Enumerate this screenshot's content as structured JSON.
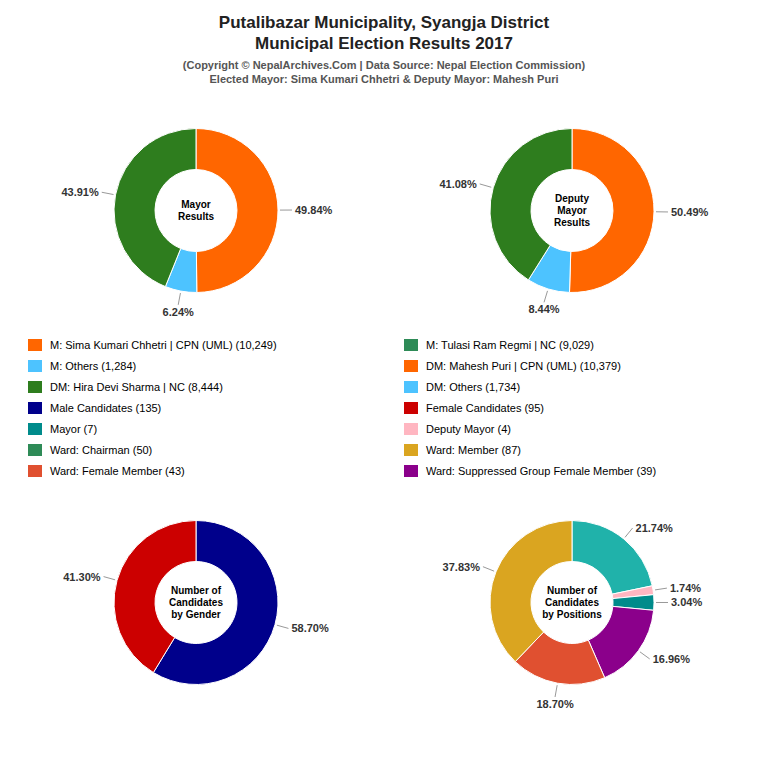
{
  "title": "Putalibazar Municipality, Syangja District\nMunicipal Election Results 2017",
  "subtitle": "(Copyright © NepalArchives.Com | Data Source: Nepal Election Commission)\nElected Mayor: Sima Kumari Chhetri & Deputy Mayor: Mahesh Puri",
  "legend_entries": [
    {
      "name": "M: Sima Kumari Chhetri | CPN (UML) (10,249)",
      "color": "#FF6600"
    },
    {
      "name": "M: Others (1,284)",
      "color": "#4DC3FF"
    },
    {
      "name": "DM: Hira Devi Sharma | NC (8,444)",
      "color": "#2E7D1E"
    },
    {
      "name": "Male Candidates (135)",
      "color": "#00008B"
    },
    {
      "name": "Mayor (7)",
      "color": "#008B8B"
    },
    {
      "name": "Ward: Chairman (50)",
      "color": "#2E8B57"
    },
    {
      "name": "Ward: Female Member (43)",
      "color": "#E05030"
    },
    {
      "name": "M: Tulasi Ram Regmi | NC (9,029)",
      "color": "#2E8B57"
    },
    {
      "name": "DM: Mahesh Puri | CPN (UML) (10,379)",
      "color": "#FF6600"
    },
    {
      "name": "DM: Others (1,734)",
      "color": "#4DC3FF"
    },
    {
      "name": "Female Candidates (95)",
      "color": "#CC0000"
    },
    {
      "name": "Deputy Mayor (4)",
      "color": "#FFB6C1"
    },
    {
      "name": "Ward: Member (87)",
      "color": "#DAA520"
    },
    {
      "name": "Ward: Suppressed Group Female Member (39)",
      "color": "#8B008B"
    }
  ],
  "chart_data": [
    {
      "type": "pie",
      "title": "Mayor\nResults",
      "values": [
        49.84,
        6.24,
        43.91
      ],
      "value_labels": [
        "49.84%",
        "6.24%",
        "43.91%"
      ],
      "colors": [
        "#FF6600",
        "#4DC3FF",
        "#2E7D1E"
      ],
      "data_labels": true
    },
    {
      "type": "pie",
      "title": "Deputy\nMayor\nResults",
      "values": [
        50.49,
        8.44,
        41.08
      ],
      "value_labels": [
        "50.49%",
        "8.44%",
        "41.08%"
      ],
      "colors": [
        "#FF6600",
        "#4DC3FF",
        "#2E7D1E"
      ],
      "data_labels": true
    },
    {
      "type": "pie",
      "title": "Number of\nCandidates\nby Gender",
      "values": [
        58.7,
        41.3
      ],
      "value_labels": [
        "58.70%",
        "41.30%"
      ],
      "colors": [
        "#00008B",
        "#CC0000"
      ],
      "data_labels": true
    },
    {
      "type": "pie",
      "title": "Number of\nCandidates\nby Positions",
      "values": [
        21.74,
        1.74,
        3.04,
        16.96,
        18.7,
        37.83
      ],
      "value_labels": [
        "21.74%",
        "1.74%",
        "3.04%",
        "16.96%",
        "18.70%",
        "37.83%"
      ],
      "colors": [
        "#20B2AA",
        "#FFB6C1",
        "#008B8B",
        "#8B008B",
        "#E05030",
        "#DAA520"
      ],
      "data_labels": true
    }
  ]
}
